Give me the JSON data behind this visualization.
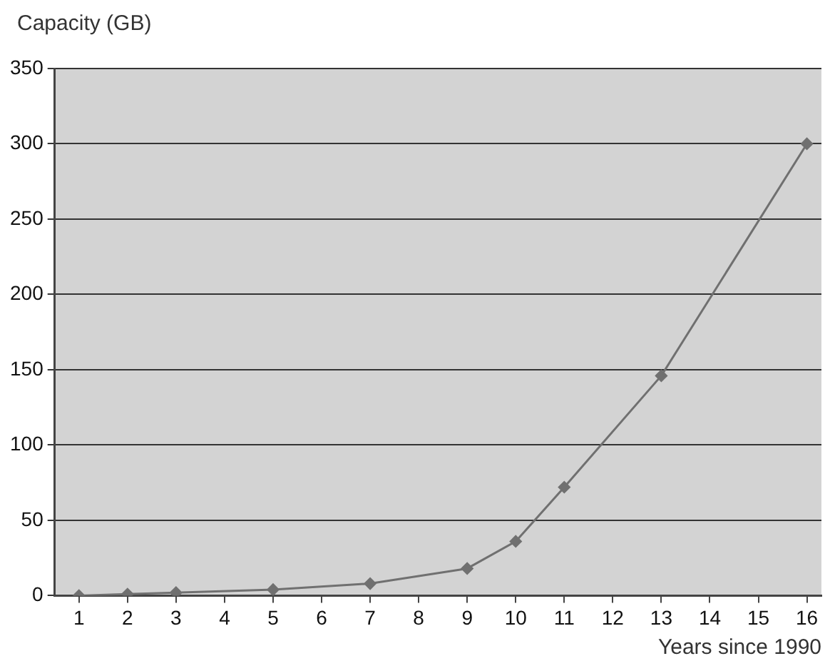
{
  "chart_data": {
    "type": "line",
    "ylabel": "Capacity (GB)",
    "xlabel": "Years since 1990",
    "x": [
      1,
      2,
      3,
      5,
      7,
      9,
      10,
      11,
      13,
      16
    ],
    "series": [
      {
        "color": "#707070",
        "values": [
          0,
          1,
          2,
          4,
          8,
          18,
          36,
          72,
          146,
          300
        ]
      }
    ],
    "xlim": [
      0.5,
      16.3
    ],
    "xticks": [
      1,
      2,
      3,
      4,
      5,
      6,
      7,
      8,
      9,
      10,
      11,
      12,
      13,
      14,
      15,
      16
    ],
    "ylim": [
      0,
      350
    ],
    "yticks": [
      0,
      50,
      100,
      150,
      200,
      250,
      300,
      350
    ],
    "grid": "y",
    "legend": false,
    "marker": "diamond",
    "line_style": "solid"
  }
}
